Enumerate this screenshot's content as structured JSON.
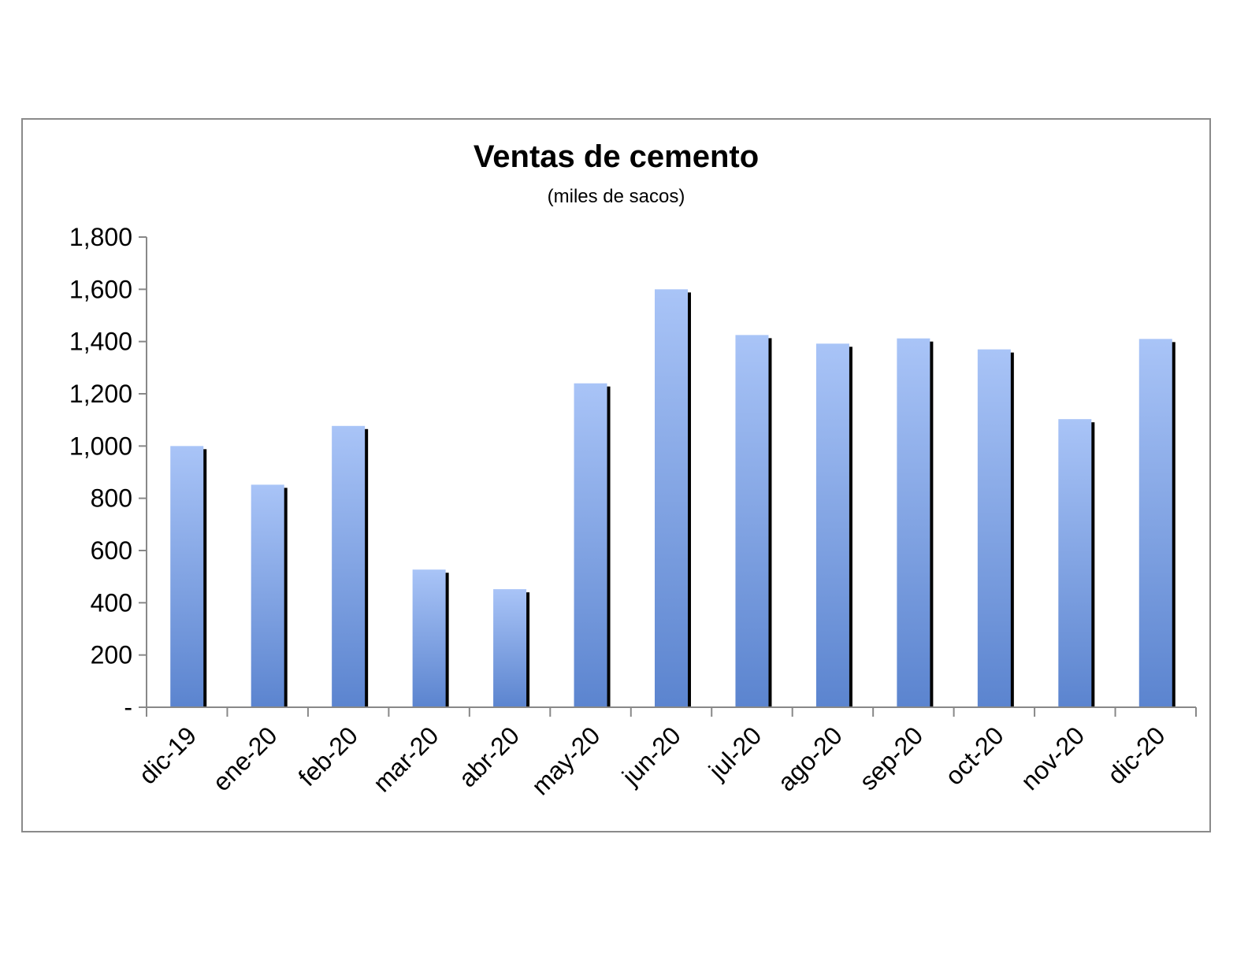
{
  "chart_data": {
    "type": "bar",
    "title": "Ventas de cemento",
    "subtitle": "(miles de sacos)",
    "xlabel": "",
    "ylabel": "",
    "categories": [
      "dic-19",
      "ene-20",
      "feb-20",
      "mar-20",
      "abr-20",
      "may-20",
      "jun-20",
      "jul-20",
      "ago-20",
      "sep-20",
      "oct-20",
      "nov-20",
      "dic-20"
    ],
    "values": [
      1000,
      852,
      1077,
      527,
      452,
      1240,
      1600,
      1425,
      1392,
      1412,
      1370,
      1103,
      1410
    ],
    "ylim": [
      0,
      1800
    ],
    "yticks": [
      0,
      200,
      400,
      600,
      800,
      1000,
      1200,
      1400,
      1600,
      1800
    ],
    "ytick_labels": [
      "-",
      "200",
      "400",
      "600",
      "800",
      "1,000",
      "1,200",
      "1,400",
      "1,600",
      "1,800"
    ],
    "grid": false,
    "legend": "none",
    "colors": {
      "bar_top": "#a9c4f7",
      "bar_bottom": "#5b84cf",
      "bar_shadow": "#000000",
      "axis": "#888888"
    }
  }
}
